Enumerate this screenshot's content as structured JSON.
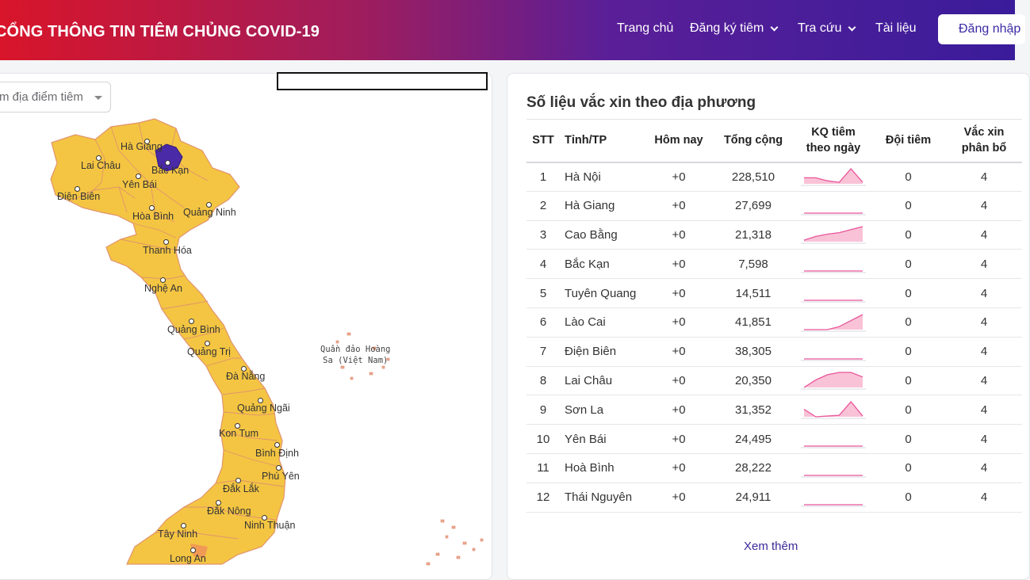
{
  "header": {
    "brand": "CỔNG THÔNG TIN TIÊM CHỦNG COVID-19",
    "nav": [
      {
        "label": "Trang chủ",
        "dropdown": false
      },
      {
        "label": "Đăng ký tiêm",
        "dropdown": true
      },
      {
        "label": "Tra cứu",
        "dropdown": true
      },
      {
        "label": "Tài liệu",
        "dropdown": false
      }
    ],
    "login_label": "Đăng nhập"
  },
  "map": {
    "select_text": "m địa điểm tiêm",
    "islands_label_line1": "Quần đảo Hoàng",
    "islands_label_line2": "Sa (Việt Nam)",
    "cities": [
      "Hà Giang",
      "Lai Châu",
      "Bắc Kạn",
      "Yên Bái",
      "Điện Biên",
      "Hòa Bình",
      "Quảng Ninh",
      "Thanh Hóa",
      "Nghệ An",
      "Quảng Bình",
      "Quảng Trị",
      "Đà Nẵng",
      "Quảng Ngãi",
      "Kon Tum",
      "Bình Định",
      "Phú Yên",
      "Đắk Lắk",
      "Đắk Nông",
      "Ninh Thuận",
      "Tây Ninh",
      "Long An"
    ],
    "colors": {
      "province_fill": "#f4c542",
      "highlight_fill": "#4b2aa8",
      "border": "#e09a7a"
    }
  },
  "stats": {
    "title": "Số liệu vắc xin theo địa phương",
    "columns": [
      "STT",
      "Tỉnh/TP",
      "Hôm nay",
      "Tổng cộng",
      "KQ tiêm theo ngày",
      "Đội tiêm",
      "Vắc xin phân bổ"
    ],
    "column_kq_line1": "KQ tiêm",
    "column_kq_line2": "theo ngày",
    "column_vac_line1": "Vắc xin",
    "column_vac_line2": "phân bổ",
    "rows": [
      {
        "stt": "1",
        "province": "Hà Nội",
        "today": "+0",
        "total": "228,510",
        "team": "0",
        "vaccine": "4",
        "trend": [
          0.4,
          0.4,
          0.2,
          0.1,
          1.0,
          0.1
        ]
      },
      {
        "stt": "2",
        "province": "Hà Giang",
        "today": "+0",
        "total": "27,699",
        "team": "0",
        "vaccine": "4",
        "trend": [
          0,
          0,
          0,
          0,
          0,
          0
        ]
      },
      {
        "stt": "3",
        "province": "Cao Bằng",
        "today": "+0",
        "total": "21,318",
        "team": "0",
        "vaccine": "4",
        "trend": [
          0.1,
          0.35,
          0.5,
          0.6,
          0.8,
          1.0
        ]
      },
      {
        "stt": "4",
        "province": "Bắc Kạn",
        "today": "+0",
        "total": "7,598",
        "team": "0",
        "vaccine": "4",
        "trend": [
          0,
          0,
          0,
          0,
          0,
          0
        ]
      },
      {
        "stt": "5",
        "province": "Tuyên Quang",
        "today": "+0",
        "total": "14,511",
        "team": "0",
        "vaccine": "4",
        "trend": [
          0,
          0,
          0,
          0,
          0,
          0
        ]
      },
      {
        "stt": "6",
        "province": "Lào Cai",
        "today": "+0",
        "total": "41,851",
        "team": "0",
        "vaccine": "4",
        "trend": [
          0,
          0,
          0,
          0.2,
          0.6,
          1.0
        ]
      },
      {
        "stt": "7",
        "province": "Điện Biên",
        "today": "+0",
        "total": "38,305",
        "team": "0",
        "vaccine": "4",
        "trend": [
          0,
          0,
          0,
          0,
          0,
          0
        ]
      },
      {
        "stt": "8",
        "province": "Lai Châu",
        "today": "+0",
        "total": "20,350",
        "team": "0",
        "vaccine": "4",
        "trend": [
          0,
          0.5,
          0.85,
          1.0,
          1.0,
          0.7
        ]
      },
      {
        "stt": "9",
        "province": "Sơn La",
        "today": "+0",
        "total": "31,352",
        "team": "0",
        "vaccine": "4",
        "trend": [
          0.5,
          0,
          0.05,
          0.1,
          1.0,
          0.05
        ]
      },
      {
        "stt": "10",
        "province": "Yên Bái",
        "today": "+0",
        "total": "24,495",
        "team": "0",
        "vaccine": "4",
        "trend": [
          0,
          0,
          0,
          0,
          0,
          0
        ]
      },
      {
        "stt": "11",
        "province": "Hoà Bình",
        "today": "+0",
        "total": "28,222",
        "team": "0",
        "vaccine": "4",
        "trend": [
          0,
          0,
          0,
          0,
          0,
          0
        ]
      },
      {
        "stt": "12",
        "province": "Thái Nguyên",
        "today": "+0",
        "total": "24,911",
        "team": "0",
        "vaccine": "4",
        "trend": [
          0,
          0,
          0,
          0,
          0,
          0
        ]
      }
    ],
    "more_label": "Xem thêm",
    "colors": {
      "spark_line": "#e8559a",
      "spark_fill": "#f9c2d6"
    }
  }
}
